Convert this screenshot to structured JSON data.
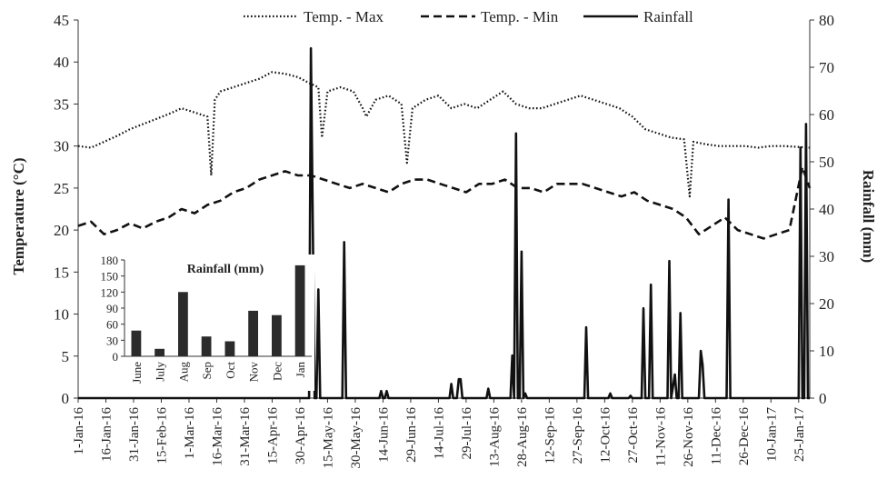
{
  "chart_data": [
    {
      "type": "line",
      "title": "",
      "ylabel": "Temperature (°C)",
      "y2label": "Rainfall (mm)",
      "ylim": [
        0,
        45
      ],
      "y2lim": [
        0,
        80
      ],
      "yticks": [
        "0",
        "5",
        "10",
        "15",
        "20",
        "25",
        "30",
        "35",
        "40",
        "45"
      ],
      "y2ticks": [
        "0",
        "10",
        "20",
        "30",
        "40",
        "50",
        "60",
        "70",
        "80"
      ],
      "x_tick_labels": [
        "1-Jan-16",
        "16-Jan-16",
        "31-Jan-16",
        "15-Feb-16",
        "1-Mar-16",
        "16-Mar-16",
        "31-Mar-16",
        "15-Apr-16",
        "30-Apr-16",
        "15-May-16",
        "30-May-16",
        "14-Jun-16",
        "29-Jun-16",
        "14-Jul-16",
        "29-Jul-16",
        "13-Aug-16",
        "28-Aug-16",
        "12-Sep-16",
        "27-Sep-16",
        "12-Oct-16",
        "27-Oct-16",
        "11-Nov-16",
        "26-Nov-16",
        "11-Dec-16",
        "26-Dec-16",
        "10-Jan-17",
        "25-Jan-17"
      ],
      "legend_position": "top",
      "grid": false,
      "series": [
        {
          "name": "Temp. - Max",
          "axis": "left",
          "style": "dotted",
          "x": [
            "2016-01-01",
            "2016-01-08",
            "2016-01-15",
            "2016-01-22",
            "2016-01-29",
            "2016-02-05",
            "2016-02-12",
            "2016-02-19",
            "2016-02-26",
            "2016-03-04",
            "2016-03-11",
            "2016-03-13",
            "2016-03-15",
            "2016-03-18",
            "2016-03-25",
            "2016-04-01",
            "2016-04-08",
            "2016-04-15",
            "2016-04-22",
            "2016-04-29",
            "2016-05-05",
            "2016-05-10",
            "2016-05-12",
            "2016-05-15",
            "2016-05-22",
            "2016-05-29",
            "2016-06-03",
            "2016-06-05",
            "2016-06-10",
            "2016-06-17",
            "2016-06-24",
            "2016-06-27",
            "2016-06-30",
            "2016-07-07",
            "2016-07-14",
            "2016-07-21",
            "2016-07-28",
            "2016-08-04",
            "2016-08-11",
            "2016-08-18",
            "2016-08-25",
            "2016-09-01",
            "2016-09-08",
            "2016-09-15",
            "2016-09-22",
            "2016-09-29",
            "2016-10-06",
            "2016-10-13",
            "2016-10-20",
            "2016-10-27",
            "2016-11-03",
            "2016-11-10",
            "2016-11-17",
            "2016-11-24",
            "2016-11-27",
            "2016-11-29",
            "2016-12-06",
            "2016-12-13",
            "2016-12-20",
            "2016-12-27",
            "2017-01-03",
            "2017-01-10",
            "2017-01-17",
            "2017-01-24",
            "2017-01-31"
          ],
          "values": [
            30.0,
            29.8,
            30.5,
            31.2,
            32.0,
            32.6,
            33.2,
            33.8,
            34.5,
            34.0,
            33.5,
            26.5,
            35.5,
            36.5,
            37.0,
            37.5,
            38.0,
            38.8,
            38.6,
            38.2,
            37.5,
            37.0,
            31.0,
            36.5,
            37.0,
            36.5,
            34.5,
            33.5,
            35.5,
            36.0,
            35.0,
            28.0,
            34.5,
            35.5,
            36.0,
            34.5,
            35.0,
            34.5,
            35.5,
            36.5,
            35.0,
            34.5,
            34.5,
            35.0,
            35.5,
            36.0,
            35.5,
            35.0,
            34.5,
            33.5,
            32.0,
            31.5,
            31.0,
            30.8,
            24.0,
            30.5,
            30.2,
            30.0,
            30.0,
            30.0,
            29.8,
            30.0,
            30.0,
            29.9,
            29.8
          ]
        },
        {
          "name": "Temp. - Min",
          "axis": "left",
          "style": "dashed",
          "x": [
            "2016-01-01",
            "2016-01-08",
            "2016-01-15",
            "2016-01-22",
            "2016-01-29",
            "2016-02-05",
            "2016-02-12",
            "2016-02-19",
            "2016-02-26",
            "2016-03-04",
            "2016-03-11",
            "2016-03-18",
            "2016-03-25",
            "2016-04-01",
            "2016-04-08",
            "2016-04-15",
            "2016-04-22",
            "2016-04-29",
            "2016-05-06",
            "2016-05-13",
            "2016-05-20",
            "2016-05-27",
            "2016-06-03",
            "2016-06-10",
            "2016-06-17",
            "2016-06-24",
            "2016-07-01",
            "2016-07-08",
            "2016-07-15",
            "2016-07-22",
            "2016-07-29",
            "2016-08-05",
            "2016-08-12",
            "2016-08-19",
            "2016-08-26",
            "2016-09-02",
            "2016-09-09",
            "2016-09-16",
            "2016-09-23",
            "2016-09-30",
            "2016-10-07",
            "2016-10-14",
            "2016-10-21",
            "2016-10-28",
            "2016-11-04",
            "2016-11-11",
            "2016-11-18",
            "2016-11-25",
            "2016-12-02",
            "2016-12-09",
            "2016-12-16",
            "2016-12-23",
            "2016-12-30",
            "2017-01-06",
            "2017-01-13",
            "2017-01-20",
            "2017-01-27",
            "2017-01-31"
          ],
          "values": [
            20.5,
            21.0,
            19.5,
            20.0,
            20.8,
            20.2,
            21.0,
            21.5,
            22.5,
            22.0,
            23.0,
            23.5,
            24.5,
            25.0,
            26.0,
            26.5,
            27.0,
            26.5,
            26.5,
            26.0,
            25.5,
            25.0,
            25.5,
            25.0,
            24.5,
            25.5,
            26.0,
            26.0,
            25.5,
            25.0,
            24.5,
            25.5,
            25.5,
            26.0,
            25.0,
            25.0,
            24.5,
            25.5,
            25.5,
            25.5,
            25.0,
            24.5,
            24.0,
            24.5,
            23.5,
            23.0,
            22.5,
            21.5,
            19.5,
            20.5,
            21.5,
            20.0,
            19.5,
            19.0,
            19.5,
            20.0,
            27.5,
            25.0
          ]
        },
        {
          "name": "Rainfall",
          "axis": "right",
          "style": "solid",
          "x": [
            "2016-01-01",
            "2016-05-05",
            "2016-05-06",
            "2016-05-08",
            "2016-05-09",
            "2016-05-10",
            "2016-05-11",
            "2016-05-12",
            "2016-05-23",
            "2016-05-24",
            "2016-05-25",
            "2016-06-12",
            "2016-06-13",
            "2016-06-14",
            "2016-06-15",
            "2016-06-16",
            "2016-06-17",
            "2016-07-20",
            "2016-07-21",
            "2016-07-22",
            "2016-07-24",
            "2016-07-25",
            "2016-07-26",
            "2016-07-27",
            "2016-08-09",
            "2016-08-10",
            "2016-08-11",
            "2016-08-22",
            "2016-08-23",
            "2016-08-24",
            "2016-08-25",
            "2016-08-26",
            "2016-08-27",
            "2016-08-28",
            "2016-08-29",
            "2016-08-30",
            "2016-08-31",
            "2016-10-01",
            "2016-10-02",
            "2016-10-03",
            "2016-10-14",
            "2016-10-15",
            "2016-10-16",
            "2016-10-25",
            "2016-10-26",
            "2016-10-27",
            "2016-11-01",
            "2016-11-02",
            "2016-11-03",
            "2016-11-05",
            "2016-11-06",
            "2016-11-07",
            "2016-11-15",
            "2016-11-16",
            "2016-11-17",
            "2016-11-19",
            "2016-11-20",
            "2016-11-21",
            "2016-11-22",
            "2016-11-23",
            "2016-11-24",
            "2016-12-02",
            "2016-12-03",
            "2016-12-04",
            "2016-12-05",
            "2016-12-17",
            "2016-12-18",
            "2016-12-19",
            "2017-01-25",
            "2017-01-26",
            "2017-01-27",
            "2017-01-28",
            "2017-01-29",
            "2017-01-30",
            "2017-01-31"
          ],
          "values": [
            0,
            0,
            74,
            0,
            0,
            23,
            0,
            0,
            0,
            33,
            0,
            0,
            1.5,
            0,
            0,
            1.5,
            0,
            0,
            3,
            0,
            0,
            4,
            4,
            0,
            0,
            2,
            0,
            0,
            9,
            0,
            56,
            0,
            0,
            31,
            0,
            1,
            0,
            0,
            15,
            0,
            0,
            1,
            0,
            0,
            0.5,
            0,
            0,
            19,
            0,
            0,
            24,
            0,
            0,
            29,
            0,
            5,
            0,
            0,
            18,
            0,
            0,
            0,
            10,
            7,
            0,
            0,
            42,
            0,
            0,
            53,
            0,
            0,
            58,
            0,
            0
          ]
        }
      ]
    },
    {
      "type": "bar",
      "title": "Rainfall (mm)",
      "categories": [
        "June",
        "July",
        "Aug",
        "Sep",
        "Oct",
        "Nov",
        "Dec",
        "Jan"
      ],
      "values": [
        48,
        14,
        120,
        37,
        28,
        85,
        77,
        170
      ],
      "ylim": [
        0,
        180
      ],
      "yticks": [
        "0",
        "30",
        "60",
        "90",
        "120",
        "150",
        "180"
      ],
      "grid": false
    }
  ]
}
